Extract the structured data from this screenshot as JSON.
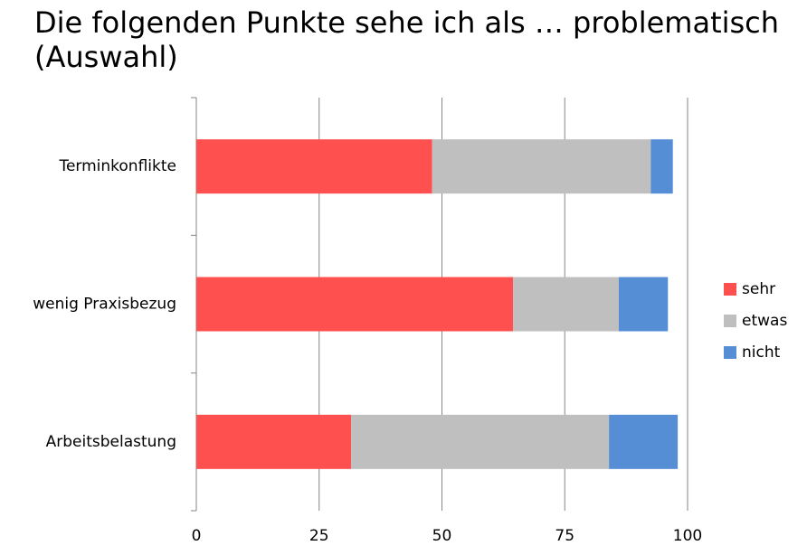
{
  "chart_data": {
    "type": "stacked-bar-horizontal",
    "title": "Die folgenden Punkte sehe ich als … problematisch (Auswahl)",
    "categories": [
      "Terminkonflikte",
      "wenig Praxisbezug",
      "Arbeitsbelastung"
    ],
    "series": [
      {
        "name": "sehr",
        "color": "#ff5050",
        "values": [
          48,
          64.5,
          31.5
        ]
      },
      {
        "name": "etwas",
        "color": "#bfbfbf",
        "values": [
          44.5,
          21.5,
          52.5
        ]
      },
      {
        "name": "nicht",
        "color": "#558ed5",
        "values": [
          4.5,
          10,
          14
        ]
      }
    ],
    "xlim": [
      0,
      100
    ],
    "xticks": [
      0,
      25,
      50,
      75,
      100
    ],
    "grid": true,
    "legend": "right"
  }
}
